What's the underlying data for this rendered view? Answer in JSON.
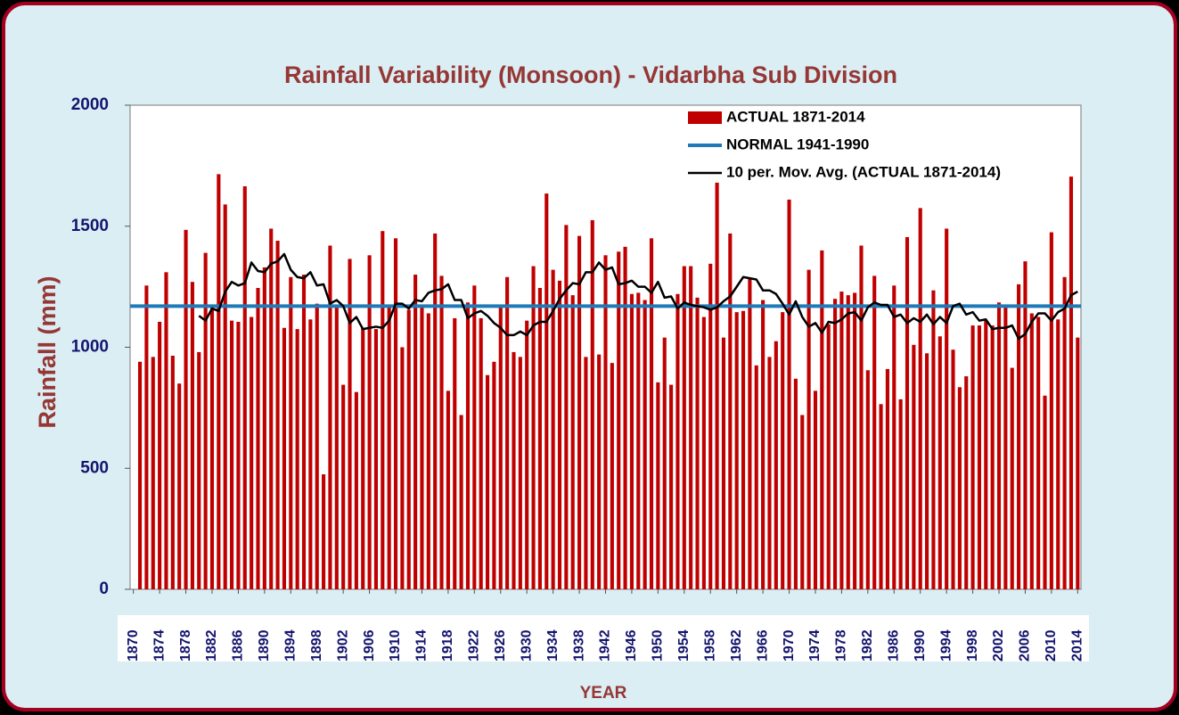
{
  "chart_data": {
    "type": "bar",
    "title": "Rainfall Variability (Monsoon) - Vidarbha Sub Division",
    "xlabel": "YEAR",
    "ylabel": "Rainfall (mm)",
    "x": [
      1871,
      1872,
      1873,
      1874,
      1875,
      1876,
      1877,
      1878,
      1879,
      1880,
      1881,
      1882,
      1883,
      1884,
      1885,
      1886,
      1887,
      1888,
      1889,
      1890,
      1891,
      1892,
      1893,
      1894,
      1895,
      1896,
      1897,
      1898,
      1899,
      1900,
      1901,
      1902,
      1903,
      1904,
      1905,
      1906,
      1907,
      1908,
      1909,
      1910,
      1911,
      1912,
      1913,
      1914,
      1915,
      1916,
      1917,
      1918,
      1919,
      1920,
      1921,
      1922,
      1923,
      1924,
      1925,
      1926,
      1927,
      1928,
      1929,
      1930,
      1931,
      1932,
      1933,
      1934,
      1935,
      1936,
      1937,
      1938,
      1939,
      1940,
      1941,
      1942,
      1943,
      1944,
      1945,
      1946,
      1947,
      1948,
      1949,
      1950,
      1951,
      1952,
      1953,
      1954,
      1955,
      1956,
      1957,
      1958,
      1959,
      1960,
      1961,
      1962,
      1963,
      1964,
      1965,
      1966,
      1967,
      1968,
      1969,
      1970,
      1971,
      1972,
      1973,
      1974,
      1975,
      1976,
      1977,
      1978,
      1979,
      1980,
      1981,
      1982,
      1983,
      1984,
      1985,
      1986,
      1987,
      1988,
      1989,
      1990,
      1991,
      1992,
      1993,
      1994,
      1995,
      1996,
      1997,
      1998,
      1999,
      2000,
      2001,
      2002,
      2003,
      2004,
      2005,
      2006,
      2007,
      2008,
      2009,
      2010,
      2011,
      2012,
      2013,
      2014
    ],
    "xlim": [
      1869.5,
      2014.5
    ],
    "xticks": [
      1870,
      1874,
      1878,
      1882,
      1886,
      1890,
      1894,
      1898,
      1902,
      1906,
      1910,
      1914,
      1918,
      1922,
      1926,
      1930,
      1934,
      1938,
      1942,
      1946,
      1950,
      1954,
      1958,
      1962,
      1966,
      1970,
      1974,
      1978,
      1982,
      1986,
      1990,
      1994,
      1998,
      2002,
      2006,
      2010,
      2014
    ],
    "ylim": [
      0,
      2000
    ],
    "yticks": [
      0,
      500,
      1000,
      1500,
      2000
    ],
    "grid": false,
    "legend": "top-right",
    "series": [
      {
        "name": "ACTUAL 1871-2014",
        "type": "bar",
        "color": "#c00000",
        "values": [
          940,
          1255,
          960,
          1105,
          1310,
          965,
          850,
          1485,
          1270,
          980,
          1390,
          1165,
          1715,
          1590,
          1110,
          1105,
          1665,
          1125,
          1245,
          1330,
          1490,
          1440,
          1080,
          1290,
          1075,
          1300,
          1115,
          1180,
          475,
          1420,
          1165,
          845,
          1365,
          815,
          1080,
          1380,
          1075,
          1480,
          1170,
          1450,
          1000,
          1155,
          1300,
          1175,
          1140,
          1470,
          1295,
          820,
          1120,
          720,
          1185,
          1255,
          1120,
          885,
          940,
          1165,
          1290,
          980,
          960,
          1110,
          1335,
          1245,
          1635,
          1320,
          1275,
          1505,
          1215,
          1460,
          960,
          1525,
          970,
          1380,
          935,
          1395,
          1415,
          1220,
          1225,
          1195,
          1450,
          855,
          1040,
          845,
          1220,
          1335,
          1335,
          1205,
          1125,
          1345,
          1680,
          1040,
          1470,
          1145,
          1150,
          1285,
          925,
          1195,
          960,
          1025,
          1145,
          1610,
          870,
          720,
          1320,
          820,
          1400,
          1095,
          1200,
          1230,
          1215,
          1225,
          1420,
          905,
          1295,
          765,
          910,
          1255,
          785,
          1455,
          1010,
          1575,
          975,
          1235,
          1045,
          1490,
          990,
          835,
          880,
          1090,
          1090,
          1110,
          1090,
          1185,
          1175,
          915,
          1260,
          1355,
          1140,
          1125,
          800,
          1475,
          1115,
          1290,
          1705,
          1040
        ]
      },
      {
        "name": "NORMAL  1941-1990",
        "type": "hline",
        "color": "#1f7ab8",
        "value": 1170
      },
      {
        "name": "10 per. Mov. Avg. (ACTUAL 1871-2014)",
        "type": "line",
        "color": "#000000",
        "values": [
          null,
          null,
          null,
          null,
          null,
          null,
          null,
          null,
          null,
          1130,
          1110,
          1160,
          1150,
          1230,
          1270,
          1255,
          1265,
          1350,
          1315,
          1310,
          1345,
          1355,
          1385,
          1320,
          1290,
          1285,
          1310,
          1255,
          1260,
          1180,
          1195,
          1170,
          1100,
          1125,
          1075,
          1080,
          1085,
          1080,
          1110,
          1180,
          1180,
          1160,
          1195,
          1190,
          1225,
          1235,
          1240,
          1260,
          1195,
          1195,
          1120,
          1140,
          1150,
          1130,
          1100,
          1080,
          1050,
          1050,
          1065,
          1050,
          1090,
          1105,
          1105,
          1150,
          1200,
          1235,
          1265,
          1260,
          1310,
          1310,
          1350,
          1320,
          1330,
          1260,
          1265,
          1275,
          1250,
          1250,
          1225,
          1270,
          1205,
          1210,
          1160,
          1185,
          1175,
          1170,
          1165,
          1155,
          1165,
          1190,
          1210,
          1250,
          1290,
          1285,
          1280,
          1235,
          1235,
          1220,
          1180,
          1135,
          1190,
          1125,
          1085,
          1100,
          1060,
          1105,
          1100,
          1115,
          1140,
          1145,
          1110,
          1165,
          1185,
          1175,
          1175,
          1125,
          1135,
          1100,
          1120,
          1105,
          1135,
          1095,
          1125,
          1100,
          1170,
          1180,
          1135,
          1145,
          1110,
          1115,
          1075,
          1080,
          1080,
          1090,
          1035,
          1055,
          1105,
          1140,
          1140,
          1110,
          1145,
          1160,
          1215,
          1230
        ]
      }
    ]
  }
}
